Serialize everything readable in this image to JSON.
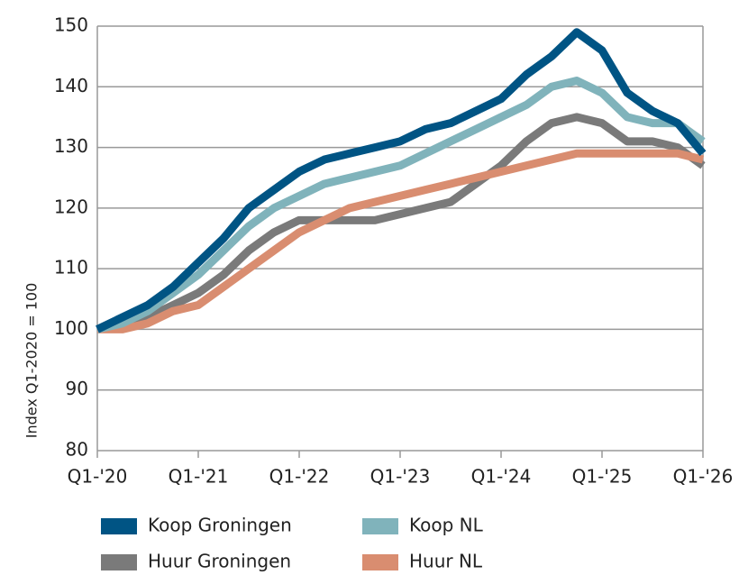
{
  "chart_data": {
    "type": "line",
    "y_label": "Index Q1-2020 = 100",
    "categories": [
      "Q1-'20",
      null,
      null,
      null,
      "Q1-'21",
      null,
      null,
      null,
      "Q1-'22",
      null,
      null,
      null,
      "Q1-'23",
      null,
      null,
      null,
      "Q1-'24",
      null,
      null,
      null,
      "Q1-'25",
      null,
      null,
      null,
      "Q1-'26"
    ],
    "series": [
      {
        "name": "Koop Groningen",
        "color": "#005484",
        "values": [
          100,
          102,
          104,
          107,
          111,
          115,
          120,
          123,
          126,
          128,
          129,
          130,
          131,
          133,
          134,
          136,
          138,
          142,
          145,
          149,
          146,
          139,
          136,
          134,
          129
        ]
      },
      {
        "name": "Koop NL",
        "color": "#80b3bb",
        "values": [
          100,
          101,
          103,
          106,
          109,
          113,
          117,
          120,
          122,
          124,
          125,
          126,
          127,
          129,
          131,
          133,
          135,
          137,
          140,
          141,
          139,
          135,
          134,
          134,
          131
        ]
      },
      {
        "name": "Huur Groningen",
        "color": "#7a7a7a",
        "values": [
          100,
          101,
          102,
          104,
          106,
          109,
          113,
          116,
          118,
          118,
          118,
          118,
          119,
          120,
          121,
          124,
          127,
          131,
          134,
          135,
          134,
          131,
          131,
          130,
          127
        ]
      },
      {
        "name": "Huur NL",
        "color": "#d98d70",
        "values": [
          100,
          100,
          101,
          103,
          104,
          107,
          110,
          113,
          116,
          118,
          120,
          121,
          122,
          123,
          124,
          125,
          126,
          127,
          128,
          129,
          129,
          129,
          129,
          129,
          128
        ]
      }
    ],
    "ylim": [
      80,
      150
    ],
    "yticks": [
      80,
      90,
      100,
      110,
      120,
      130,
      140,
      150
    ],
    "grid": true
  }
}
